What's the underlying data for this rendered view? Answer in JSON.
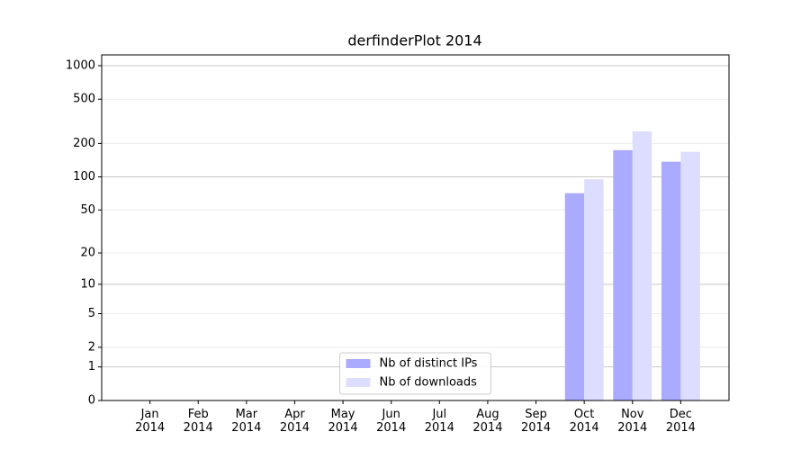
{
  "chart_data": {
    "type": "bar",
    "title": "derfinderPlot 2014",
    "categories": [
      "Jan 2014",
      "Feb 2014",
      "Mar 2014",
      "Apr 2014",
      "May 2014",
      "Jun 2014",
      "Jul 2014",
      "Aug 2014",
      "Sep 2014",
      "Oct 2014",
      "Nov 2014",
      "Dec 2014"
    ],
    "series": [
      {
        "name": "Nb of distinct IPs",
        "color": "#aaaaff",
        "values": [
          0,
          0,
          0,
          0,
          0,
          0,
          0,
          0,
          0,
          71,
          174,
          137
        ]
      },
      {
        "name": "Nb of downloads",
        "color": "#ddddff",
        "values": [
          0,
          0,
          0,
          0,
          0,
          0,
          0,
          0,
          0,
          95,
          257,
          168
        ]
      }
    ],
    "yscale": "log1p",
    "ylim": [
      0,
      1249
    ],
    "yticks": [
      0,
      1,
      2,
      5,
      10,
      20,
      50,
      100,
      200,
      500,
      1000
    ],
    "grid": true,
    "legend": "lower center"
  }
}
